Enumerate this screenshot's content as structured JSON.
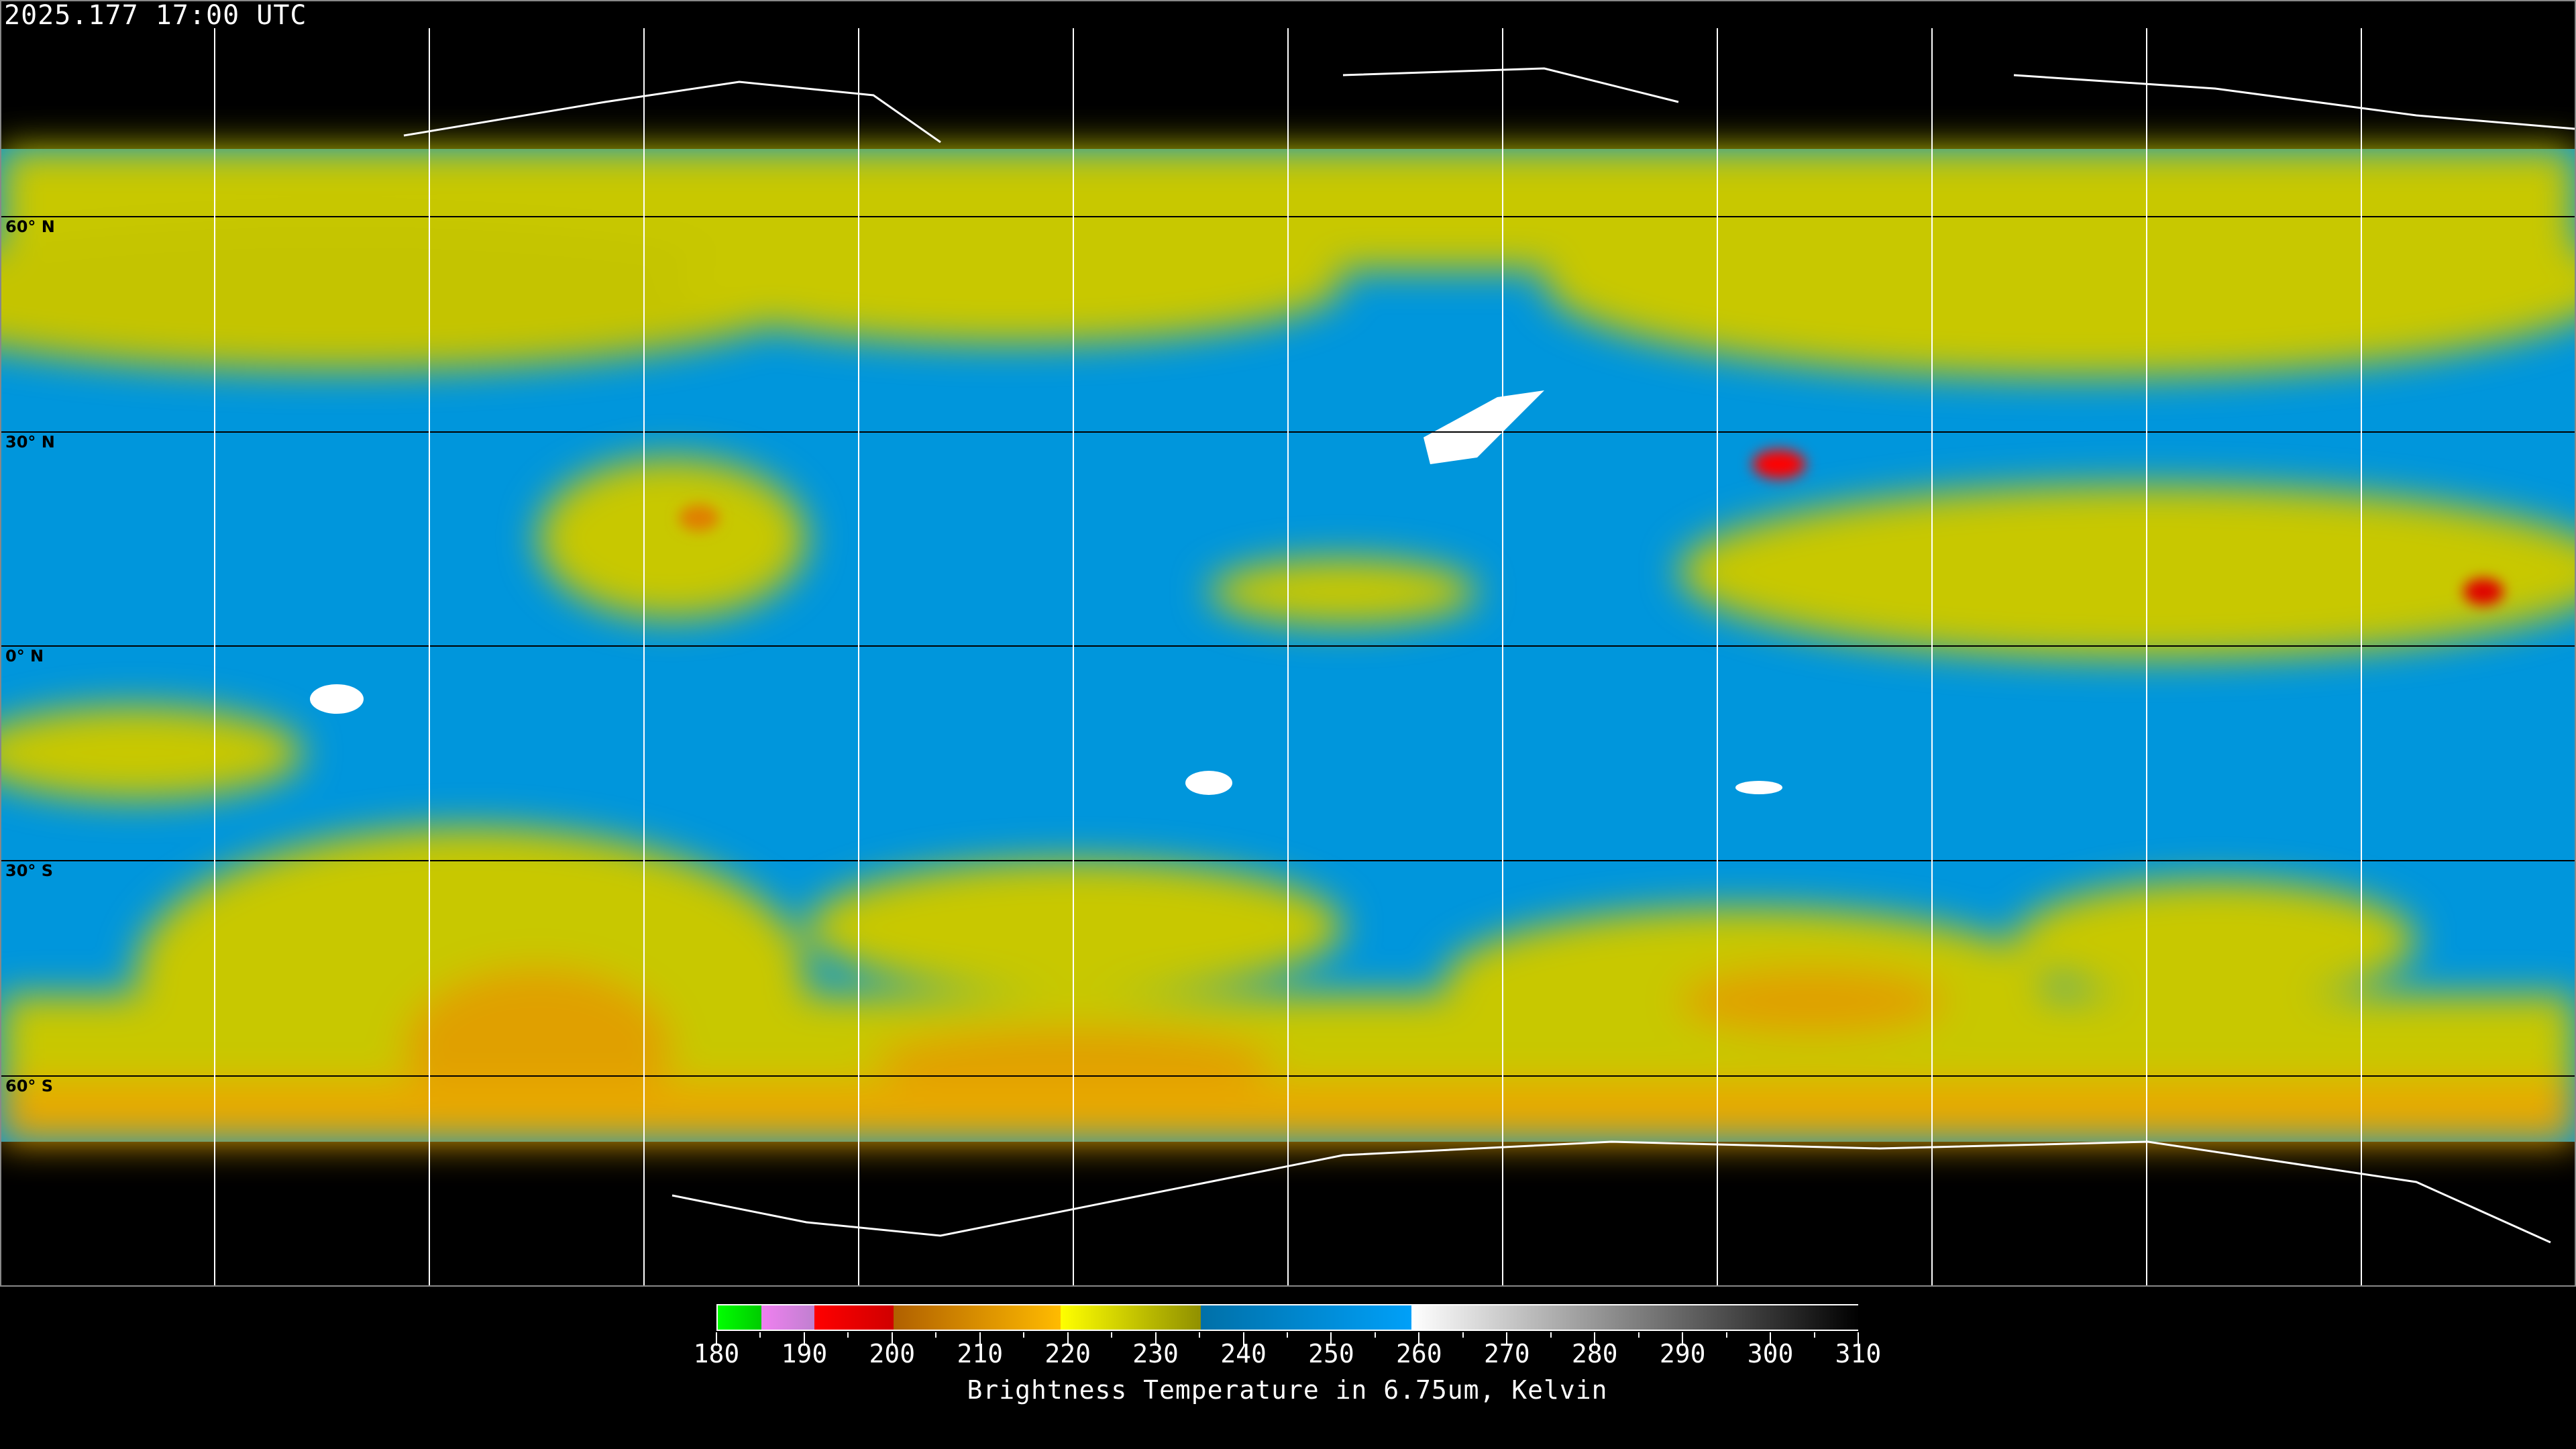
{
  "header": {
    "timestamp": "2025.177 17:00 UTC"
  },
  "map": {
    "projection": "equirectangular",
    "latitude_labels": [
      "60° N",
      "30° N",
      "0° N",
      "30° S",
      "60° S"
    ],
    "colors": {
      "dry_high_bt": "#0099e6",
      "moist": "#c8c800",
      "very_cold": "#ff0000",
      "cold": "#e89000",
      "warm": "#ffffff",
      "coastline_land_outline": "#000000",
      "coastline_outside": "#ffffff"
    }
  },
  "colorbar": {
    "ticks": [
      "180",
      "190",
      "200",
      "210",
      "220",
      "230",
      "240",
      "250",
      "260",
      "270",
      "280",
      "290",
      "300",
      "310"
    ],
    "range": [
      180,
      310
    ],
    "title": "Brightness Temperature in 6.75um, Kelvin",
    "stops": [
      {
        "from": 180,
        "to": 185,
        "c1": "#00ff00",
        "c2": "#00cc00"
      },
      {
        "from": 185,
        "to": 191,
        "c1": "#f080f0",
        "c2": "#c080d0"
      },
      {
        "from": 191,
        "to": 200,
        "c1": "#ff0000",
        "c2": "#d00000"
      },
      {
        "from": 200,
        "to": 219,
        "c1": "#b06000",
        "c2": "#ffbb00"
      },
      {
        "from": 219,
        "to": 235,
        "c1": "#ffff00",
        "c2": "#909000"
      },
      {
        "from": 235,
        "to": 259,
        "c1": "#0070a8",
        "c2": "#00a0f8"
      },
      {
        "from": 259,
        "to": 310,
        "c1": "#ffffff",
        "c2": "#000000"
      }
    ]
  }
}
